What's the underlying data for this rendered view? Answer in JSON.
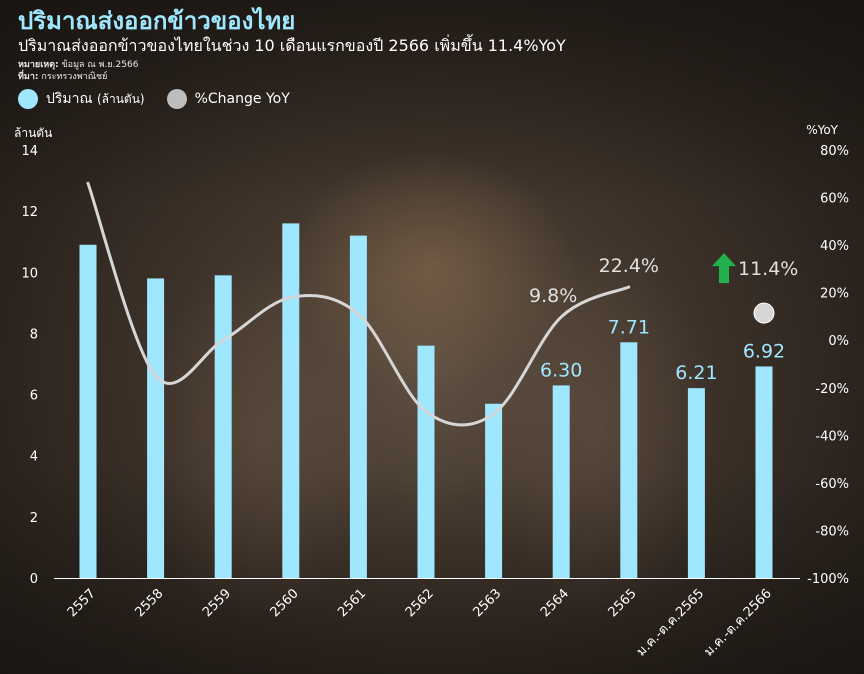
{
  "header": {
    "title": "ปริมาณส่งออกข้าวของไทย",
    "subtitle": "ปริมาณส่งออกข้าวของไทยในช่วง 10 เดือนแรกของปี 2566 เพิ่มขึ้น 11.4%YoY",
    "note_label": "หมายเหตุ:",
    "note_text": " ข้อมูล ณ พ.ย.2566",
    "source_label": "ที่มา:",
    "source_text": " กระทรวงพาณิชย์"
  },
  "legend": {
    "volume_label": "ปริมาณ",
    "volume_unit": "(ล้านตัน)",
    "change_label": "%Change YoY"
  },
  "colors": {
    "bar": "#9fe6ff",
    "line": "#d6d6d6",
    "title": "#9fe6ff",
    "arrow": "#22b14c"
  },
  "chart_data": {
    "type": "bar",
    "categories": [
      "2557",
      "2558",
      "2559",
      "2560",
      "2561",
      "2562",
      "2563",
      "2564",
      "2565",
      "ม.ค.-ต.ค.2565",
      "ม.ค.-ต.ค.2566"
    ],
    "series": [
      {
        "name": "ปริมาณ (ล้านตัน)",
        "type": "bar",
        "axis": "left",
        "values": [
          10.9,
          9.8,
          9.9,
          11.6,
          11.2,
          7.6,
          5.7,
          6.3,
          7.71,
          6.21,
          6.92
        ],
        "labels": [
          "",
          "",
          "",
          "",
          "",
          "",
          "",
          "6.30",
          "7.71",
          "6.21",
          "6.92"
        ]
      },
      {
        "name": "%Change YoY",
        "type": "line",
        "axis": "right",
        "values": [
          66,
          -15,
          0,
          18,
          11,
          -30,
          -31,
          9.8,
          22.4,
          null,
          11.4
        ],
        "labels": [
          "",
          "",
          "",
          "",
          "",
          "",
          "",
          "9.8%",
          "22.4%",
          "",
          "11.4%"
        ],
        "last_point_as_marker": true
      }
    ],
    "y_left": {
      "label": "ล้านตัน",
      "min": 0,
      "max": 14,
      "ticks": [
        "0",
        "2",
        "4",
        "6",
        "8",
        "10",
        "12",
        "14"
      ]
    },
    "y_right": {
      "label": "%YoY",
      "min": -100,
      "max": 80,
      "ticks": [
        "-100%",
        "-80%",
        "-60%",
        "-40%",
        "-20%",
        "0%",
        "20%",
        "40%",
        "60%",
        "80%"
      ]
    },
    "grid": false,
    "legend_position": "top-left"
  }
}
